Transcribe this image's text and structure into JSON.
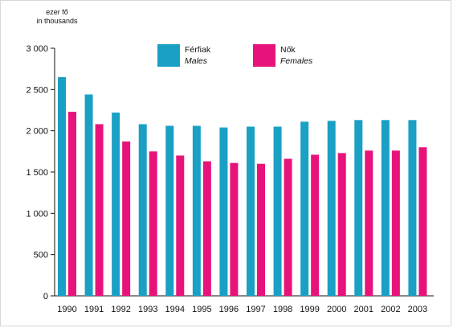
{
  "chart_data": {
    "type": "bar",
    "unit_label_hu": "ezer fő",
    "unit_label_en": "in thousands",
    "categories": [
      "1990",
      "1991",
      "1992",
      "1993",
      "1994",
      "1995",
      "1996",
      "1997",
      "1998",
      "1999",
      "2000",
      "2001",
      "2002",
      "2003"
    ],
    "series": [
      {
        "name_hu": "Férfiak",
        "name_en": "Males",
        "color": "#1aa0c4",
        "values": [
          2650,
          2440,
          2220,
          2080,
          2060,
          2060,
          2040,
          2050,
          2050,
          2110,
          2120,
          2130,
          2130,
          2130
        ]
      },
      {
        "name_hu": "Nők",
        "name_en": "Females",
        "color": "#e8137a",
        "values": [
          2230,
          2080,
          1870,
          1750,
          1700,
          1630,
          1610,
          1600,
          1660,
          1710,
          1730,
          1760,
          1760,
          1800
        ]
      }
    ],
    "ylim": [
      0,
      3000
    ],
    "yticks": [
      0,
      500,
      1000,
      1500,
      2000,
      2500,
      3000
    ],
    "ytick_labels": [
      "0",
      "500",
      "1 000",
      "1 500",
      "2 000",
      "2 500",
      "3 000"
    ],
    "grid": false,
    "legend": "top-center"
  }
}
